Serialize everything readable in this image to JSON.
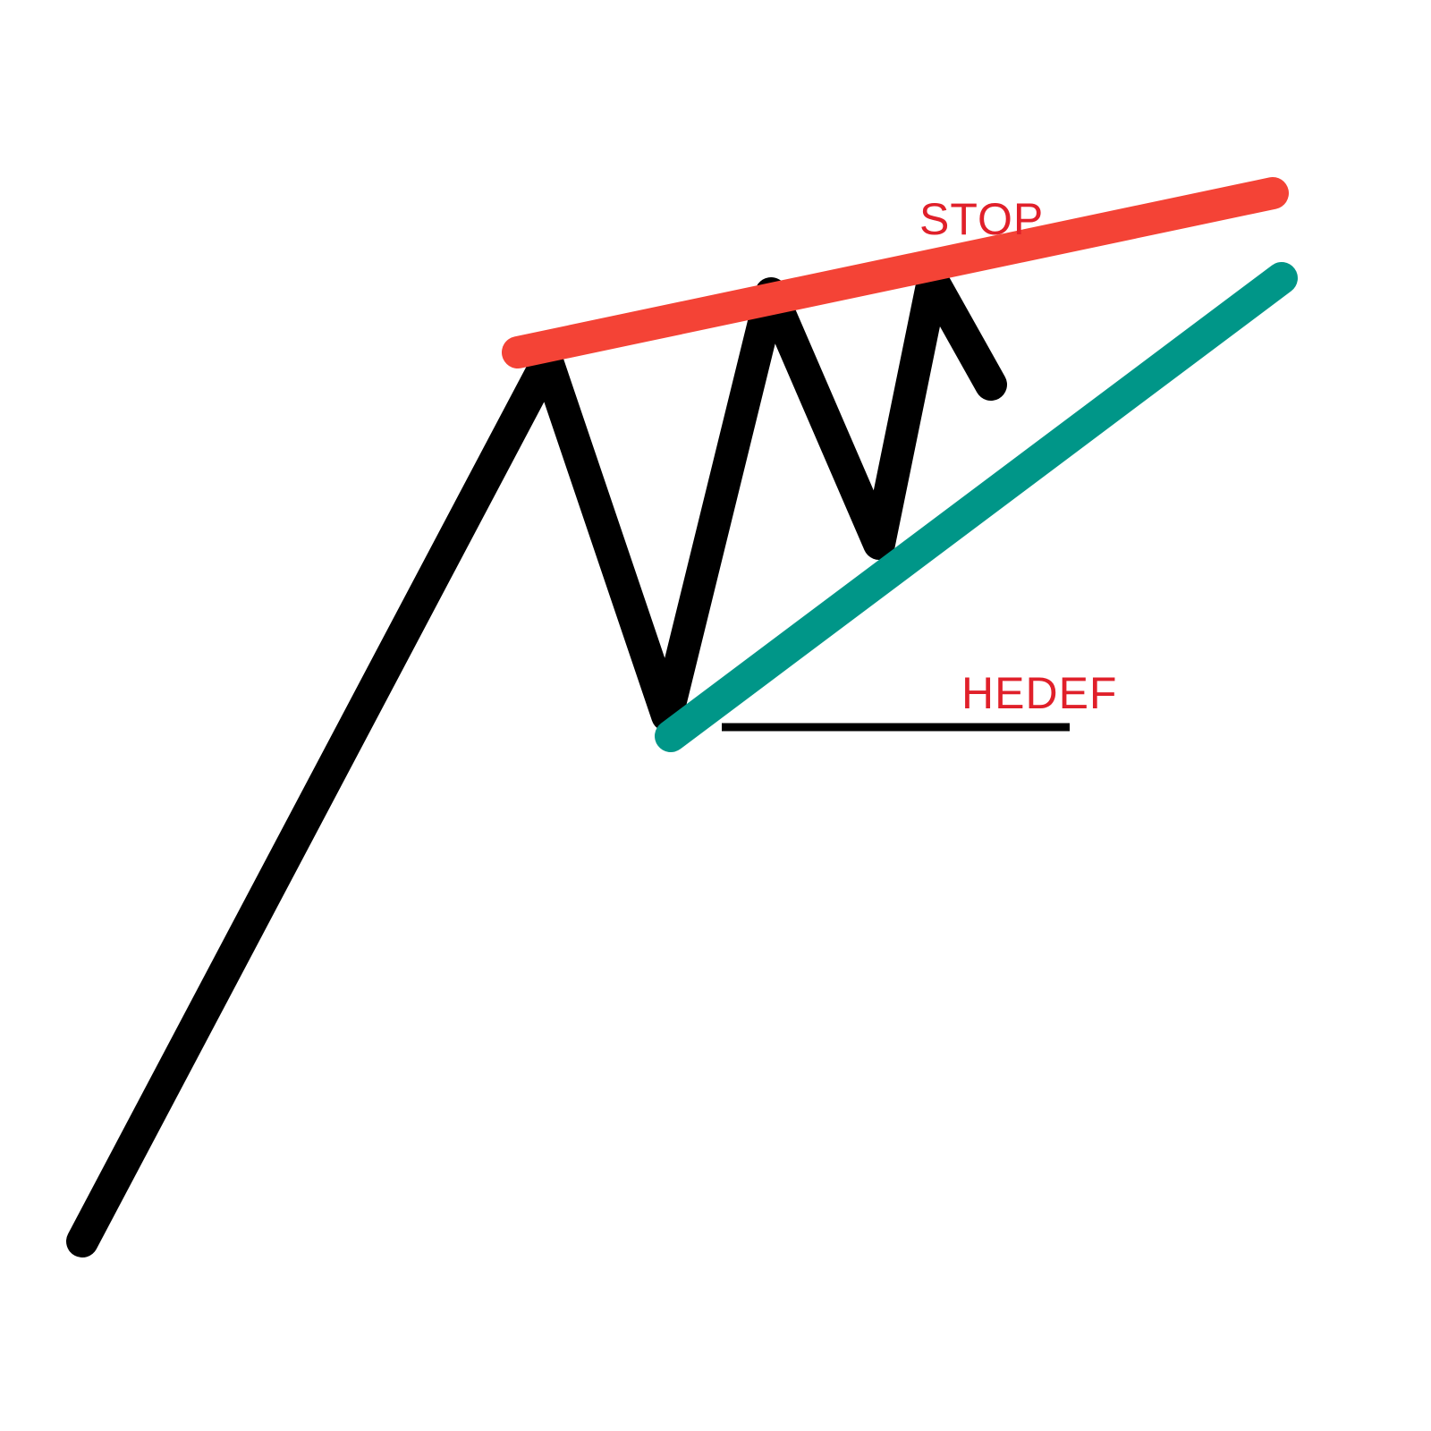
{
  "diagram": {
    "stop_label": "STOP",
    "target_label": "HEDEF",
    "colors": {
      "price_path": "#000000",
      "resistance_line": "#F44336",
      "support_line": "#009688",
      "label_text": "#E0202A",
      "target_line": "#000000"
    }
  }
}
